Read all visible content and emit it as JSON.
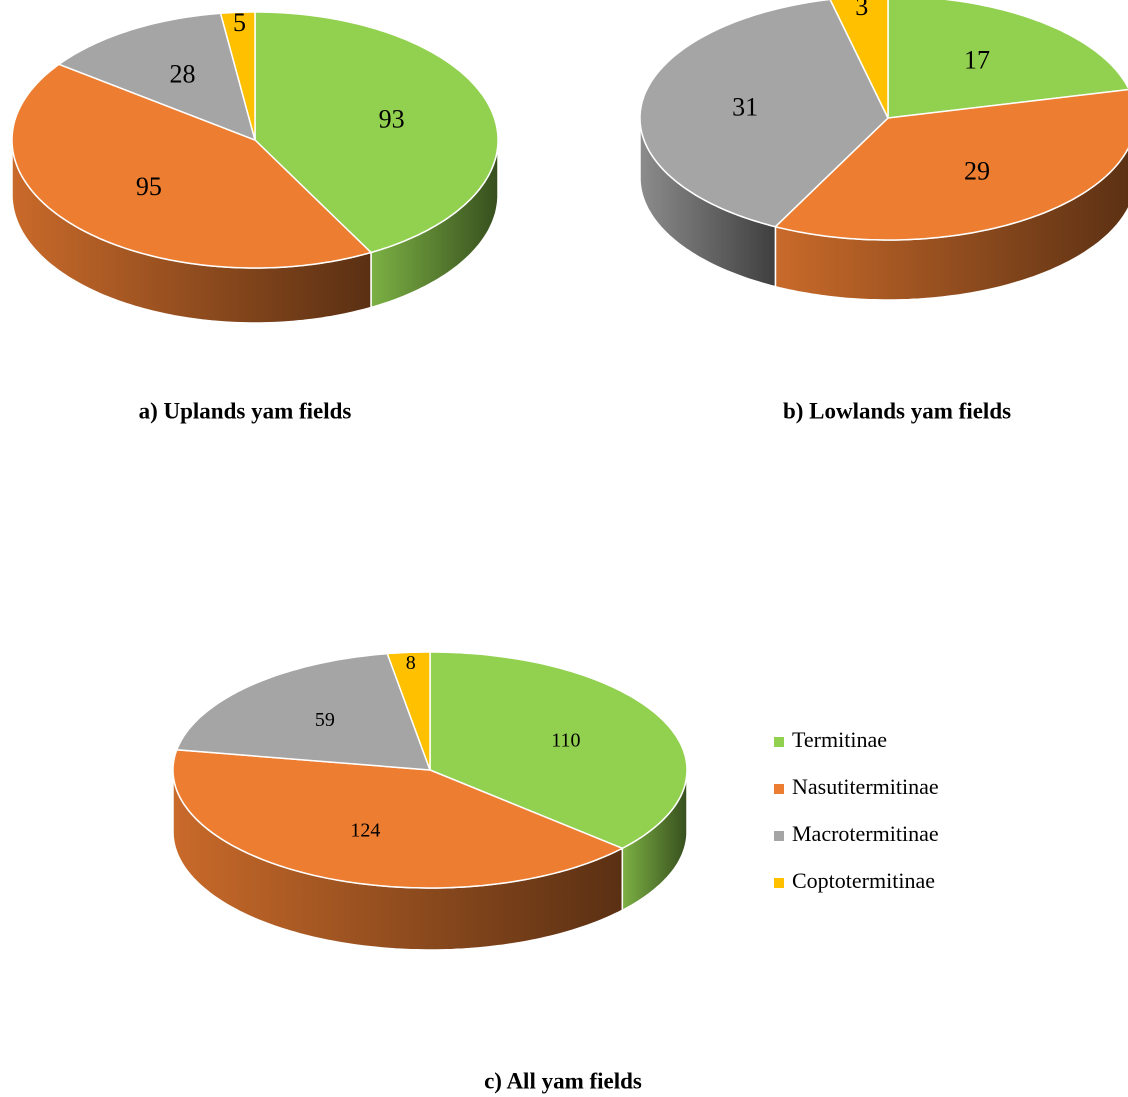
{
  "chart_data": [
    {
      "type": "pie",
      "title": "a) Uplands yam fields",
      "values": [
        93,
        95,
        28,
        5
      ],
      "colors": [
        "#92d050",
        "#ed7d31",
        "#a5a5a5",
        "#ffc000"
      ]
    },
    {
      "type": "pie",
      "title": "b) Lowlands yam fields",
      "values": [
        17,
        29,
        31,
        3
      ],
      "colors": [
        "#92d050",
        "#ed7d31",
        "#a5a5a5",
        "#ffc000"
      ]
    },
    {
      "type": "pie",
      "title": "c) All yam fields",
      "values": [
        110,
        124,
        59,
        8
      ],
      "colors": [
        "#92d050",
        "#ed7d31",
        "#a5a5a5",
        "#ffc000"
      ],
      "categories": [
        "Termitinae",
        "Nasutitermitinae",
        "Macrotermitinae",
        "Coptotermitinae"
      ],
      "legend": "right"
    }
  ]
}
